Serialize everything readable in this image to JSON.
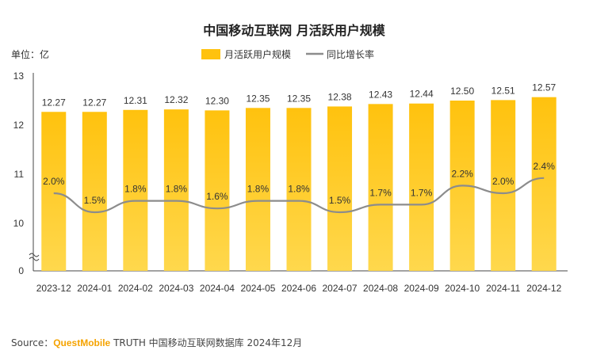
{
  "chart_data": {
    "type": "bar+line",
    "title": "中国移动互联网 月活跃用户规模",
    "unit_label": "单位：亿",
    "categories": [
      "2023-12",
      "2024-01",
      "2024-02",
      "2024-03",
      "2024-04",
      "2024-05",
      "2024-06",
      "2024-07",
      "2024-08",
      "2024-09",
      "2024-10",
      "2024-11",
      "2024-12"
    ],
    "series": [
      {
        "name": "月活跃用户规模",
        "type": "bar",
        "values": [
          12.27,
          12.27,
          12.31,
          12.32,
          12.3,
          12.35,
          12.35,
          12.38,
          12.43,
          12.44,
          12.5,
          12.51,
          12.57
        ],
        "labels": [
          "12.27",
          "12.27",
          "12.31",
          "12.32",
          "12.30",
          "12.35",
          "12.35",
          "12.38",
          "12.43",
          "12.44",
          "12.50",
          "12.51",
          "12.57"
        ]
      },
      {
        "name": "同比增长率",
        "type": "line",
        "unit": "%",
        "values": [
          2.0,
          1.5,
          1.8,
          1.8,
          1.6,
          1.8,
          1.8,
          1.5,
          1.7,
          1.7,
          2.2,
          2.0,
          2.4
        ],
        "labels": [
          "2.0%",
          "1.5%",
          "1.8%",
          "1.8%",
          "1.6%",
          "1.8%",
          "1.8%",
          "1.5%",
          "1.7%",
          "1.7%",
          "2.2%",
          "2.0%",
          "2.4%"
        ]
      }
    ],
    "y_axis": {
      "ticks": [
        "0",
        "10",
        "11",
        "12",
        "13"
      ],
      "broken": true,
      "range": [
        9.6,
        13
      ]
    },
    "legend_position": "top-right",
    "grid": false,
    "colors": {
      "bar_top": "#FFC20E",
      "bar_bottom": "#FFD84D",
      "line": "#8C8C8C"
    }
  },
  "source": {
    "prefix": "Source：",
    "brand": "QuestMobile",
    "rest": "TRUTH 中国移动互联网数据库 2024年12月"
  }
}
